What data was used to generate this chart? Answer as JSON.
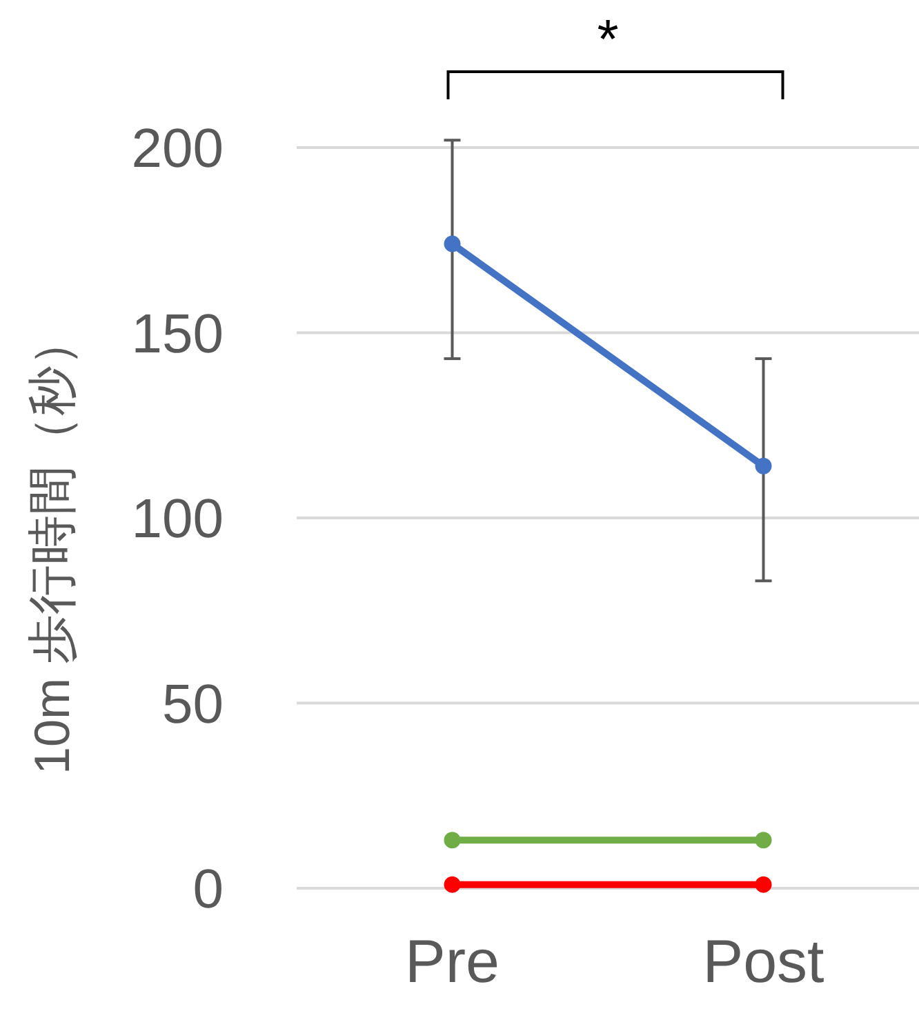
{
  "chart_data": {
    "type": "line",
    "ylabel": "10m 歩行時間（秒）",
    "categories": [
      "Pre",
      "Post"
    ],
    "series": [
      {
        "color": "#4472c4",
        "values": [
          174,
          114
        ],
        "errors": [
          [
            143,
            202
          ],
          [
            83,
            143
          ]
        ]
      },
      {
        "color": "#70ad47",
        "values": [
          13,
          13
        ]
      },
      {
        "color": "#ff0000",
        "values": [
          1,
          1
        ]
      }
    ],
    "ylim": [
      0,
      200
    ],
    "yticks": [
      0,
      50,
      100,
      150,
      200
    ],
    "grid": "y",
    "marker": "circle",
    "line_style": "solid",
    "annotations": [
      "*"
    ]
  }
}
